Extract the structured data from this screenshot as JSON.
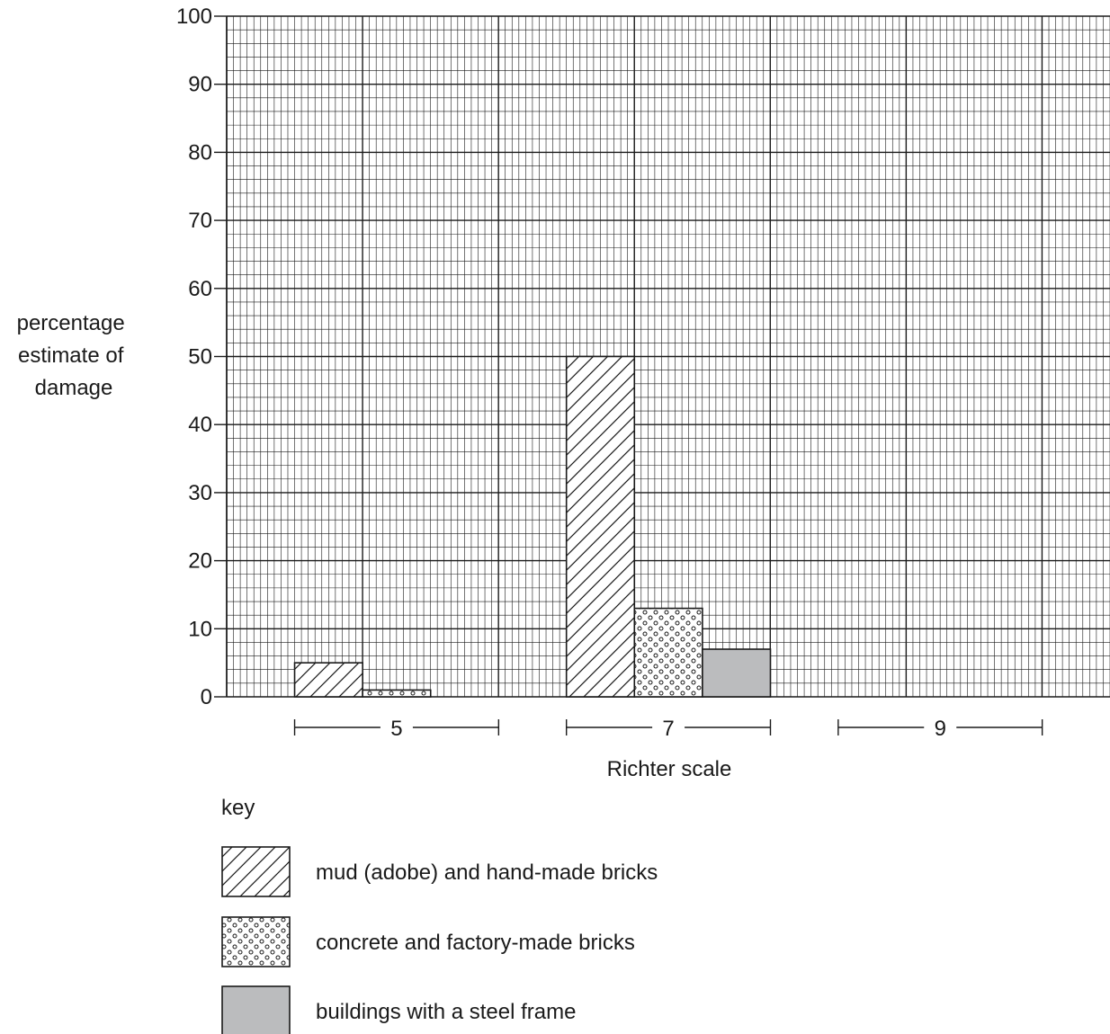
{
  "chart_data": {
    "type": "bar",
    "title": "",
    "xlabel": "Richter scale",
    "ylabel": [
      "percentage",
      "estimate of",
      "damage"
    ],
    "categories": [
      "5",
      "7",
      "9"
    ],
    "series": [
      {
        "name": "mud (adobe) and hand-made bricks",
        "pattern": "hatch",
        "values": [
          5,
          50,
          null
        ]
      },
      {
        "name": "concrete and factory-made bricks",
        "pattern": "dots",
        "values": [
          1,
          13,
          null
        ]
      },
      {
        "name": "buildings with a steel frame",
        "pattern": "solid",
        "values": [
          null,
          7,
          null
        ]
      }
    ],
    "ylim": [
      0,
      100
    ],
    "yticks": [
      0,
      10,
      20,
      30,
      40,
      50,
      60,
      70,
      80,
      90,
      100
    ],
    "grid": true,
    "legend_title": "key",
    "legend_position": "bottom"
  },
  "colors": {
    "ink": "#1a1a1a",
    "grid_minor": "#1a1a1a",
    "grid_major": "#1a1a1a",
    "steel_fill": "#bbbcbe",
    "background": "#ffffff"
  }
}
